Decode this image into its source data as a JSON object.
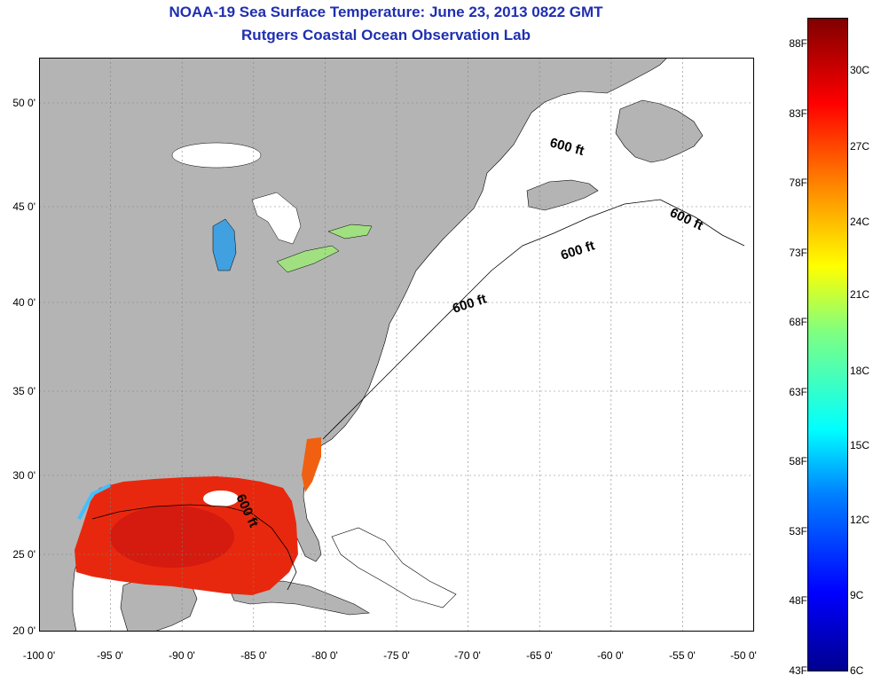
{
  "title": {
    "line1": "NOAA-19 Sea Surface Temperature:  June 23, 2013 0822 GMT",
    "line2": "Rutgers Coastal Ocean Observation Lab"
  },
  "map": {
    "lon_range": [
      -100,
      -50
    ],
    "lat_range": [
      20,
      52.5
    ],
    "lat_ticks": [
      "50 0'",
      "45 0'",
      "40 0'",
      "35 0'",
      "30 0'",
      "25 0'",
      "20 0'"
    ],
    "lon_ticks": [
      "-100 0'",
      "-95 0'",
      "-90 0'",
      "-85 0'",
      "-80 0'",
      "-75 0'",
      "-70 0'",
      "-65 0'",
      "-60 0'",
      "-55 0'",
      "-50 0'"
    ],
    "contour_labels": [
      "600 ft",
      "600 ft",
      "600 ft",
      "600 ft",
      "600 ft"
    ],
    "colors": {
      "land": "#b4b4b4",
      "ocean_no_data": "#ffffff",
      "gulf_sst": "#e8280e",
      "grid": "#808080"
    }
  },
  "colorbar": {
    "fahrenheit_labels": [
      "88F",
      "83F",
      "78F",
      "73F",
      "68F",
      "63F",
      "58F",
      "53F",
      "48F",
      "43F"
    ],
    "celsius_labels": [
      "30C",
      "27C",
      "24C",
      "21C",
      "18C",
      "15C",
      "12C",
      "9C",
      "6C"
    ],
    "colors": [
      "#00008f",
      "#0000ff",
      "#0080ff",
      "#00ffff",
      "#80ff80",
      "#ffff00",
      "#ff8000",
      "#ff0000",
      "#800000"
    ]
  }
}
